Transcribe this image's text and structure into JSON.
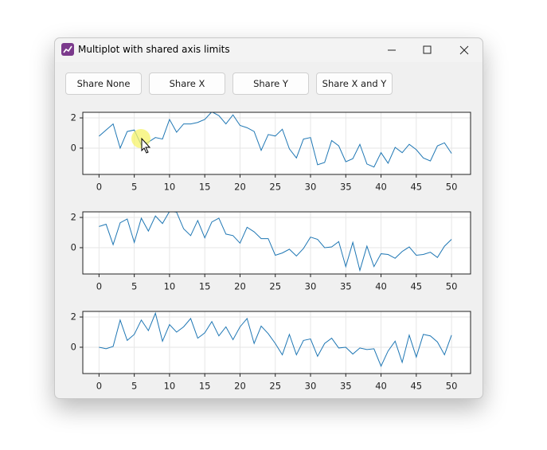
{
  "window": {
    "title": "Multiplot with shared axis limits"
  },
  "buttons": [
    "Share None",
    "Share X",
    "Share Y",
    "Share X and Y"
  ],
  "chart_data": [
    {
      "type": "line",
      "color": "#1f77b4",
      "grid": true,
      "x": [
        0,
        1,
        2,
        3,
        4,
        5,
        6,
        7,
        8,
        9,
        10,
        11,
        12,
        13,
        14,
        15,
        16,
        17,
        18,
        19,
        20,
        21,
        22,
        23,
        24,
        25,
        26,
        27,
        28,
        29,
        30,
        31,
        32,
        33,
        34,
        35,
        36,
        37,
        38,
        39,
        40,
        41,
        42,
        43,
        44,
        45,
        46,
        47,
        48,
        49,
        50
      ],
      "values": [
        0.79,
        1.2,
        1.6,
        0.0,
        1.1,
        1.2,
        0.2,
        0.4,
        0.7,
        0.6,
        1.9,
        1.05,
        1.6,
        1.6,
        1.7,
        1.9,
        2.4,
        2.15,
        1.6,
        2.2,
        1.5,
        1.35,
        1.1,
        -0.15,
        0.9,
        0.8,
        1.25,
        -0.05,
        -0.65,
        0.6,
        0.7,
        -1.1,
        -0.95,
        0.5,
        0.15,
        -0.9,
        -0.7,
        0.25,
        -1.05,
        -1.25,
        -0.3,
        -1.0,
        0.05,
        -0.3,
        0.25,
        -0.1,
        -0.65,
        -0.85,
        0.15,
        0.35,
        -0.35
      ],
      "xlim": [
        -2.3,
        52.7
      ],
      "xticks": [
        0,
        5,
        10,
        15,
        20,
        25,
        30,
        35,
        40,
        45,
        50
      ],
      "ylim": [
        -1.74,
        2.37
      ],
      "yticks": [
        0,
        2
      ]
    },
    {
      "type": "line",
      "color": "#1f77b4",
      "grid": true,
      "x": [
        0,
        1,
        2,
        3,
        4,
        5,
        6,
        7,
        8,
        9,
        10,
        11,
        12,
        13,
        14,
        15,
        16,
        17,
        18,
        19,
        20,
        21,
        22,
        23,
        24,
        25,
        26,
        27,
        28,
        29,
        30,
        31,
        32,
        33,
        34,
        35,
        36,
        37,
        38,
        39,
        40,
        41,
        42,
        43,
        44,
        45,
        46,
        47,
        48,
        49,
        50
      ],
      "values": [
        1.4,
        1.55,
        0.2,
        1.65,
        1.9,
        0.35,
        1.95,
        1.1,
        2.1,
        1.6,
        2.4,
        2.35,
        1.25,
        0.8,
        1.8,
        0.65,
        1.7,
        1.95,
        0.9,
        0.8,
        0.3,
        1.35,
        1.05,
        0.6,
        0.6,
        -0.5,
        -0.35,
        -0.1,
        -0.55,
        -0.05,
        0.7,
        0.55,
        0,
        0.05,
        0.4,
        -1.25,
        0.35,
        -1.5,
        0.1,
        -1.25,
        -0.4,
        -0.45,
        -0.7,
        -0.25,
        0.05,
        -0.5,
        -0.45,
        -0.3,
        -0.65,
        0.1,
        0.55
      ],
      "xlim": [
        -2.3,
        52.7
      ],
      "xticks": [
        0,
        5,
        10,
        15,
        20,
        25,
        30,
        35,
        40,
        45,
        50
      ],
      "ylim": [
        -1.74,
        2.37
      ],
      "yticks": [
        0,
        2
      ]
    },
    {
      "type": "line",
      "color": "#1f77b4",
      "grid": true,
      "x": [
        0,
        1,
        2,
        3,
        4,
        5,
        6,
        7,
        8,
        9,
        10,
        11,
        12,
        13,
        14,
        15,
        16,
        17,
        18,
        19,
        20,
        21,
        22,
        23,
        24,
        25,
        26,
        27,
        28,
        29,
        30,
        31,
        32,
        33,
        34,
        35,
        36,
        37,
        38,
        39,
        40,
        41,
        42,
        43,
        44,
        45,
        46,
        47,
        48,
        49,
        50
      ],
      "values": [
        0,
        -0.1,
        0.05,
        1.8,
        0.45,
        0.85,
        1.8,
        1.1,
        2.25,
        0.4,
        1.5,
        1.0,
        1.35,
        1.9,
        0.6,
        0.95,
        1.7,
        0.75,
        1.35,
        0.5,
        1.35,
        1.9,
        0.25,
        1.4,
        0.9,
        0.25,
        -0.5,
        0.85,
        -0.5,
        0.45,
        0.55,
        -0.6,
        0.25,
        0.6,
        -0.05,
        0,
        -0.45,
        -0.05,
        -0.15,
        -0.1,
        -1.25,
        -0.25,
        0.4,
        -1.0,
        0.8,
        -0.65,
        0.85,
        0.75,
        0.35,
        -0.5,
        0.8
      ],
      "xlim": [
        -2.3,
        52.7
      ],
      "xticks": [
        0,
        5,
        10,
        15,
        20,
        25,
        30,
        35,
        40,
        45,
        50
      ],
      "ylim": [
        -1.74,
        2.37
      ],
      "yticks": [
        0,
        2
      ]
    }
  ]
}
